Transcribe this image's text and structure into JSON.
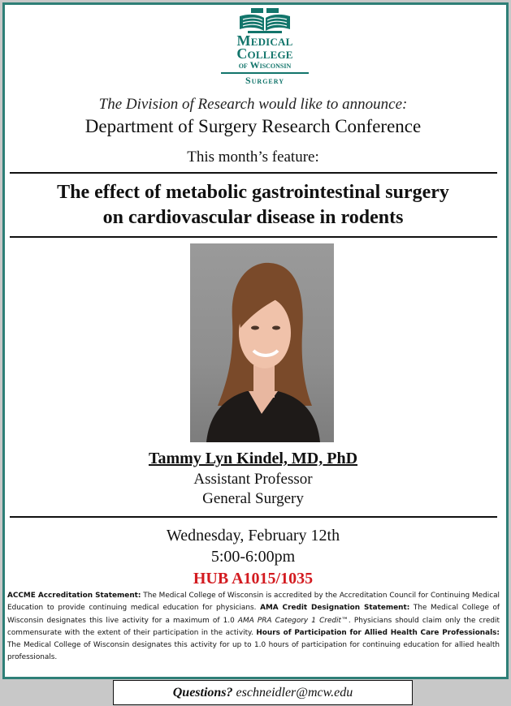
{
  "logo": {
    "line1": "Medical",
    "line2": "College",
    "line3": "of Wisconsin",
    "line4": "Surgery"
  },
  "announcement": "The Division of Research would like to announce:",
  "conference": "Department of Surgery Research Conference",
  "feature_label": "This month’s feature:",
  "talk_title_line1": "The effect of metabolic gastrointestinal surgery",
  "talk_title_line2": "on cardiovascular disease in rodents",
  "speaker": {
    "name": "Tammy Lyn Kindel, MD, PhD",
    "title": "Assistant Professor",
    "department": "General Surgery"
  },
  "event": {
    "date": "Wednesday, February 12th",
    "time": "5:00-6:00pm",
    "location": "HUB A1015/1035"
  },
  "accreditation": {
    "accme_label": "ACCME Accreditation Statement:",
    "accme_text": " The Medical College of Wisconsin is accredited by the Accreditation Council for Continuing Medical Education to provide continuing medical education for physicians. ",
    "ama_label": "AMA Credit Designation Statement:",
    "ama_text_1": " The Medical College of Wisconsin designates this live activity for a maximum of 1.0 ",
    "ama_credit": "AMA PRA Category 1 Credit™",
    "ama_text_2": ". Physicians should claim only the credit commensurate with the extent of their participation in the activity. ",
    "allied_label": "Hours of Participation for Allied Health Care Professionals:",
    "allied_text": " The Medical College of Wisconsin designates this activity for up to 1.0 hours of participation for continuing education for allied health professionals."
  },
  "questions": {
    "label": "Questions?",
    "email": " eschneidler@mcw.edu"
  },
  "colors": {
    "brand_teal": "#12756b",
    "frame_teal": "#2e7f77",
    "location_red": "#d31b20"
  }
}
